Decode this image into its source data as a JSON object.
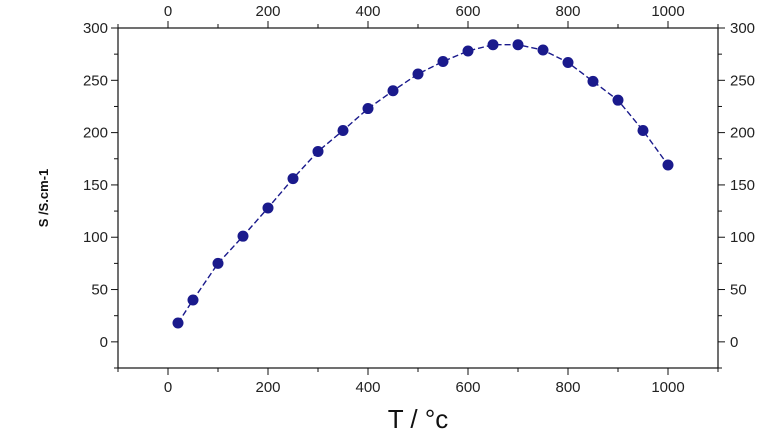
{
  "chart_data": {
    "type": "scatter",
    "xlabel": "T  /  °c",
    "ylabel": "S  /S.cm-1",
    "xlim": [
      -100,
      1100
    ],
    "ylim": [
      -25,
      300
    ],
    "x_ticks": [
      0,
      200,
      400,
      600,
      800,
      1000
    ],
    "y_ticks": [
      0,
      50,
      100,
      150,
      200,
      250,
      300
    ],
    "x_tick_labels": [
      "0",
      "200",
      "400",
      "600",
      "800",
      "1000"
    ],
    "y_tick_labels": [
      "0",
      "50",
      "100",
      "150",
      "200",
      "250",
      "300"
    ],
    "grid": false,
    "series": [
      {
        "color": "#1a1a8c",
        "line_style": "dashed",
        "x": [
          20,
          50,
          100,
          150,
          200,
          250,
          300,
          350,
          400,
          450,
          500,
          550,
          600,
          650,
          700,
          750,
          800,
          850,
          900,
          950,
          1000
        ],
        "y": [
          18,
          40,
          75,
          101,
          128,
          156,
          182,
          202,
          223,
          240,
          256,
          268,
          278,
          284,
          284,
          279,
          267,
          249,
          231,
          202,
          169
        ]
      }
    ]
  }
}
